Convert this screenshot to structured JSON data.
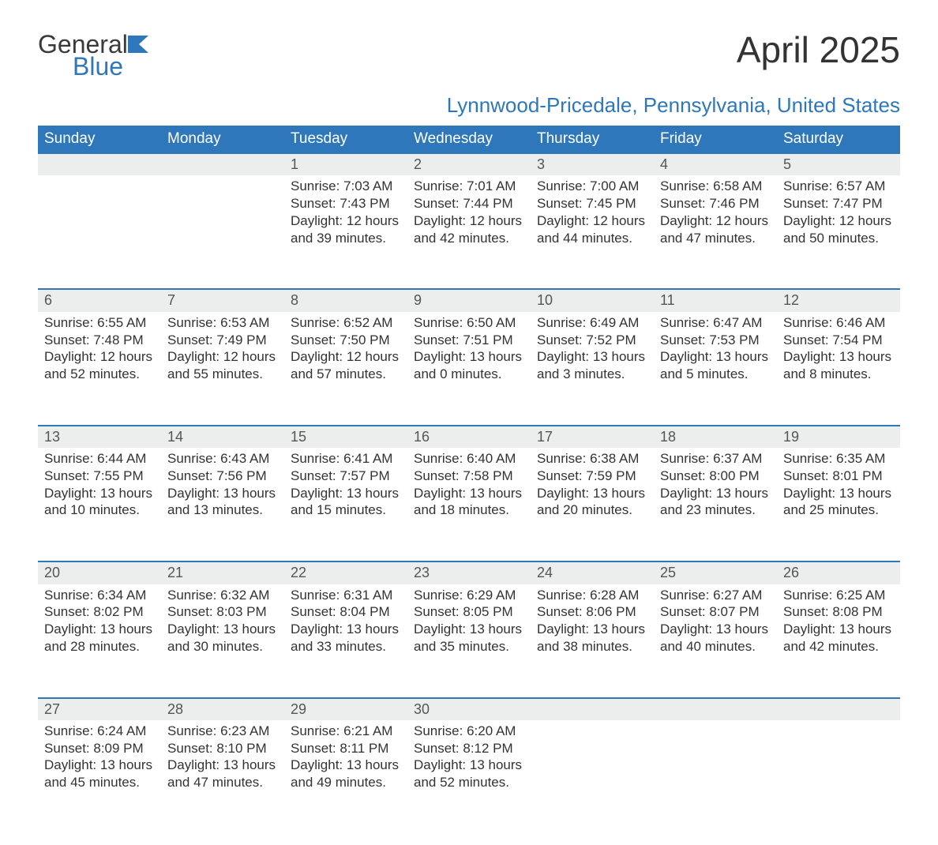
{
  "brand": {
    "word1": "General",
    "word2": "Blue"
  },
  "title": "April 2025",
  "subtitle": "Lynnwood-Pricedale, Pennsylvania, United States",
  "colors": {
    "accent": "#2e77bb",
    "header_text": "#ffffff",
    "daynum_bg": "#eceded",
    "body_text": "#333333",
    "background": "#ffffff"
  },
  "typography": {
    "title_fontsize": 46,
    "subtitle_fontsize": 26,
    "header_fontsize": 19,
    "daynum_fontsize": 18,
    "details_fontsize": 17,
    "font_family": "Arial"
  },
  "days_of_week": [
    "Sunday",
    "Monday",
    "Tuesday",
    "Wednesday",
    "Thursday",
    "Friday",
    "Saturday"
  ],
  "weeks": [
    [
      null,
      null,
      {
        "n": "1",
        "sunrise": "7:03 AM",
        "sunset": "7:43 PM",
        "daylight": "12 hours and 39 minutes."
      },
      {
        "n": "2",
        "sunrise": "7:01 AM",
        "sunset": "7:44 PM",
        "daylight": "12 hours and 42 minutes."
      },
      {
        "n": "3",
        "sunrise": "7:00 AM",
        "sunset": "7:45 PM",
        "daylight": "12 hours and 44 minutes."
      },
      {
        "n": "4",
        "sunrise": "6:58 AM",
        "sunset": "7:46 PM",
        "daylight": "12 hours and 47 minutes."
      },
      {
        "n": "5",
        "sunrise": "6:57 AM",
        "sunset": "7:47 PM",
        "daylight": "12 hours and 50 minutes."
      }
    ],
    [
      {
        "n": "6",
        "sunrise": "6:55 AM",
        "sunset": "7:48 PM",
        "daylight": "12 hours and 52 minutes."
      },
      {
        "n": "7",
        "sunrise": "6:53 AM",
        "sunset": "7:49 PM",
        "daylight": "12 hours and 55 minutes."
      },
      {
        "n": "8",
        "sunrise": "6:52 AM",
        "sunset": "7:50 PM",
        "daylight": "12 hours and 57 minutes."
      },
      {
        "n": "9",
        "sunrise": "6:50 AM",
        "sunset": "7:51 PM",
        "daylight": "13 hours and 0 minutes."
      },
      {
        "n": "10",
        "sunrise": "6:49 AM",
        "sunset": "7:52 PM",
        "daylight": "13 hours and 3 minutes."
      },
      {
        "n": "11",
        "sunrise": "6:47 AM",
        "sunset": "7:53 PM",
        "daylight": "13 hours and 5 minutes."
      },
      {
        "n": "12",
        "sunrise": "6:46 AM",
        "sunset": "7:54 PM",
        "daylight": "13 hours and 8 minutes."
      }
    ],
    [
      {
        "n": "13",
        "sunrise": "6:44 AM",
        "sunset": "7:55 PM",
        "daylight": "13 hours and 10 minutes."
      },
      {
        "n": "14",
        "sunrise": "6:43 AM",
        "sunset": "7:56 PM",
        "daylight": "13 hours and 13 minutes."
      },
      {
        "n": "15",
        "sunrise": "6:41 AM",
        "sunset": "7:57 PM",
        "daylight": "13 hours and 15 minutes."
      },
      {
        "n": "16",
        "sunrise": "6:40 AM",
        "sunset": "7:58 PM",
        "daylight": "13 hours and 18 minutes."
      },
      {
        "n": "17",
        "sunrise": "6:38 AM",
        "sunset": "7:59 PM",
        "daylight": "13 hours and 20 minutes."
      },
      {
        "n": "18",
        "sunrise": "6:37 AM",
        "sunset": "8:00 PM",
        "daylight": "13 hours and 23 minutes."
      },
      {
        "n": "19",
        "sunrise": "6:35 AM",
        "sunset": "8:01 PM",
        "daylight": "13 hours and 25 minutes."
      }
    ],
    [
      {
        "n": "20",
        "sunrise": "6:34 AM",
        "sunset": "8:02 PM",
        "daylight": "13 hours and 28 minutes."
      },
      {
        "n": "21",
        "sunrise": "6:32 AM",
        "sunset": "8:03 PM",
        "daylight": "13 hours and 30 minutes."
      },
      {
        "n": "22",
        "sunrise": "6:31 AM",
        "sunset": "8:04 PM",
        "daylight": "13 hours and 33 minutes."
      },
      {
        "n": "23",
        "sunrise": "6:29 AM",
        "sunset": "8:05 PM",
        "daylight": "13 hours and 35 minutes."
      },
      {
        "n": "24",
        "sunrise": "6:28 AM",
        "sunset": "8:06 PM",
        "daylight": "13 hours and 38 minutes."
      },
      {
        "n": "25",
        "sunrise": "6:27 AM",
        "sunset": "8:07 PM",
        "daylight": "13 hours and 40 minutes."
      },
      {
        "n": "26",
        "sunrise": "6:25 AM",
        "sunset": "8:08 PM",
        "daylight": "13 hours and 42 minutes."
      }
    ],
    [
      {
        "n": "27",
        "sunrise": "6:24 AM",
        "sunset": "8:09 PM",
        "daylight": "13 hours and 45 minutes."
      },
      {
        "n": "28",
        "sunrise": "6:23 AM",
        "sunset": "8:10 PM",
        "daylight": "13 hours and 47 minutes."
      },
      {
        "n": "29",
        "sunrise": "6:21 AM",
        "sunset": "8:11 PM",
        "daylight": "13 hours and 49 minutes."
      },
      {
        "n": "30",
        "sunrise": "6:20 AM",
        "sunset": "8:12 PM",
        "daylight": "13 hours and 52 minutes."
      },
      null,
      null,
      null
    ]
  ],
  "labels": {
    "sunrise_prefix": "Sunrise: ",
    "sunset_prefix": "Sunset: ",
    "daylight_prefix": "Daylight: "
  }
}
